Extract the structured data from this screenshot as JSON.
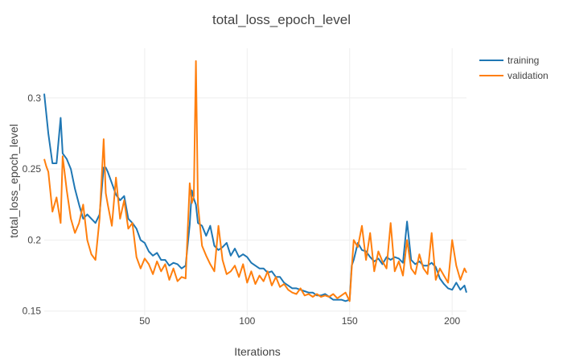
{
  "chart_data": {
    "type": "line",
    "title": "total_loss_epoch_level",
    "xlabel": "Iterations",
    "ylabel": "total_loss_epoch_level",
    "xlim": [
      1,
      207
    ],
    "ylim": [
      0.147,
      0.335
    ],
    "x_ticks": [
      50,
      100,
      150,
      200
    ],
    "y_ticks": [
      0.15,
      0.2,
      0.25,
      0.3
    ],
    "grid": true,
    "legend_position": "top-right",
    "series": [
      {
        "name": "training",
        "color": "#1f77b4",
        "x": [
          1,
          3,
          5,
          7,
          9,
          10,
          12,
          14,
          16,
          18,
          20,
          22,
          24,
          26,
          28,
          30,
          31,
          32,
          34,
          36,
          38,
          40,
          42,
          44,
          46,
          48,
          50,
          52,
          54,
          56,
          58,
          60,
          62,
          64,
          66,
          68,
          70,
          72,
          73,
          74,
          75,
          76,
          78,
          80,
          82,
          84,
          86,
          88,
          90,
          92,
          94,
          96,
          98,
          100,
          102,
          104,
          106,
          108,
          110,
          112,
          114,
          116,
          118,
          120,
          122,
          124,
          126,
          128,
          130,
          132,
          134,
          136,
          138,
          140,
          142,
          144,
          146,
          148,
          150,
          151,
          152,
          154,
          156,
          158,
          160,
          162,
          164,
          166,
          168,
          170,
          172,
          174,
          176,
          178,
          180,
          182,
          184,
          186,
          188,
          190,
          192,
          194,
          196,
          198,
          200,
          202,
          204,
          206,
          207
        ],
        "values": [
          0.303,
          0.275,
          0.254,
          0.254,
          0.286,
          0.261,
          0.257,
          0.25,
          0.236,
          0.225,
          0.215,
          0.218,
          0.215,
          0.212,
          0.218,
          0.251,
          0.251,
          0.248,
          0.24,
          0.232,
          0.228,
          0.231,
          0.215,
          0.212,
          0.208,
          0.2,
          0.198,
          0.192,
          0.189,
          0.191,
          0.186,
          0.186,
          0.182,
          0.184,
          0.183,
          0.18,
          0.182,
          0.211,
          0.235,
          0.229,
          0.225,
          0.212,
          0.21,
          0.203,
          0.21,
          0.196,
          0.193,
          0.195,
          0.198,
          0.189,
          0.194,
          0.188,
          0.19,
          0.188,
          0.184,
          0.182,
          0.18,
          0.18,
          0.177,
          0.178,
          0.174,
          0.174,
          0.17,
          0.168,
          0.166,
          0.166,
          0.165,
          0.164,
          0.163,
          0.163,
          0.161,
          0.161,
          0.162,
          0.16,
          0.158,
          0.158,
          0.158,
          0.157,
          0.158,
          0.182,
          0.186,
          0.198,
          0.193,
          0.192,
          0.188,
          0.185,
          0.187,
          0.183,
          0.188,
          0.186,
          0.188,
          0.187,
          0.184,
          0.213,
          0.186,
          0.183,
          0.185,
          0.182,
          0.182,
          0.184,
          0.181,
          0.173,
          0.169,
          0.166,
          0.165,
          0.17,
          0.165,
          0.168,
          0.163
        ]
      },
      {
        "name": "validation",
        "color": "#ff7f0e",
        "x": [
          1,
          2,
          3,
          5,
          7,
          9,
          10,
          12,
          14,
          16,
          18,
          20,
          22,
          24,
          26,
          28,
          30,
          31,
          32,
          34,
          36,
          38,
          40,
          42,
          44,
          46,
          48,
          50,
          52,
          54,
          56,
          58,
          60,
          62,
          64,
          66,
          68,
          70,
          72,
          73,
          74,
          75,
          76,
          78,
          80,
          82,
          84,
          86,
          88,
          90,
          92,
          94,
          96,
          98,
          100,
          102,
          104,
          106,
          108,
          110,
          112,
          114,
          116,
          118,
          120,
          122,
          124,
          126,
          128,
          130,
          132,
          134,
          136,
          138,
          140,
          142,
          144,
          146,
          148,
          150,
          151,
          152,
          154,
          156,
          158,
          160,
          162,
          164,
          166,
          168,
          170,
          172,
          174,
          176,
          178,
          180,
          182,
          184,
          186,
          188,
          190,
          192,
          194,
          196,
          198,
          200,
          202,
          204,
          206,
          207
        ],
        "values": [
          0.257,
          0.252,
          0.248,
          0.22,
          0.23,
          0.212,
          0.259,
          0.235,
          0.215,
          0.205,
          0.212,
          0.225,
          0.2,
          0.19,
          0.186,
          0.215,
          0.271,
          0.233,
          0.225,
          0.21,
          0.244,
          0.215,
          0.228,
          0.208,
          0.212,
          0.188,
          0.18,
          0.187,
          0.183,
          0.176,
          0.185,
          0.178,
          0.183,
          0.172,
          0.18,
          0.171,
          0.174,
          0.173,
          0.24,
          0.226,
          0.231,
          0.326,
          0.225,
          0.196,
          0.189,
          0.183,
          0.178,
          0.21,
          0.186,
          0.176,
          0.178,
          0.182,
          0.174,
          0.183,
          0.17,
          0.178,
          0.169,
          0.175,
          0.171,
          0.178,
          0.168,
          0.174,
          0.167,
          0.169,
          0.165,
          0.163,
          0.162,
          0.166,
          0.161,
          0.162,
          0.16,
          0.162,
          0.16,
          0.161,
          0.16,
          0.162,
          0.159,
          0.161,
          0.163,
          0.157,
          0.18,
          0.2,
          0.195,
          0.21,
          0.186,
          0.205,
          0.178,
          0.192,
          0.185,
          0.18,
          0.212,
          0.178,
          0.185,
          0.175,
          0.2,
          0.18,
          0.176,
          0.19,
          0.18,
          0.176,
          0.205,
          0.172,
          0.18,
          0.175,
          0.17,
          0.2,
          0.182,
          0.172,
          0.18,
          0.177
        ]
      }
    ]
  }
}
